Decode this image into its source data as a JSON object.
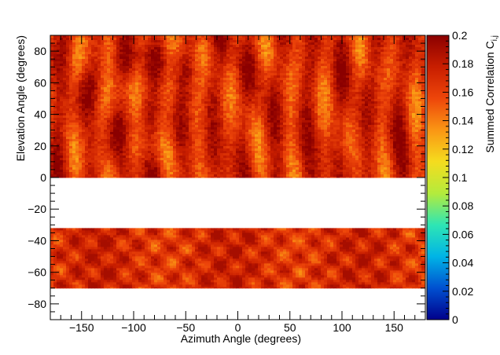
{
  "chart_data": {
    "type": "heatmap",
    "xlabel": "Azimuth Angle (degrees)",
    "ylabel": "Elevation Angle (degrees)",
    "xlim": [
      -180,
      180
    ],
    "ylim": [
      -90,
      90
    ],
    "x_ticks": [
      -150,
      -100,
      -50,
      0,
      50,
      100,
      150
    ],
    "y_ticks": [
      -80,
      -60,
      -40,
      -20,
      0,
      20,
      40,
      60,
      80
    ],
    "colorbar": {
      "label_main": "Summed Correlation C",
      "label_sub": "i,j",
      "range": [
        0,
        0.2
      ],
      "ticks": [
        0,
        0.02,
        0.04,
        0.06,
        0.08,
        0.1,
        0.12,
        0.14,
        0.16,
        0.18,
        0.2
      ]
    },
    "colormap": [
      "#00008b",
      "#0050d0",
      "#00b4e6",
      "#2ee6b4",
      "#b4eb3c",
      "#f5dc1e",
      "#fa9614",
      "#ee460a",
      "#c81e00",
      "#8b0000"
    ],
    "bands": [
      {
        "elevation_range": [
          0,
          90
        ],
        "typical_value": 0.16,
        "min_value": 0.1,
        "max_value": 0.2,
        "pattern": "vertical streaks with arcs"
      },
      {
        "elevation_range": [
          -70,
          -32
        ],
        "typical_value": 0.16,
        "min_value": 0.11,
        "max_value": 0.19,
        "pattern": "crossing diagonal fringes"
      }
    ],
    "blank_regions": [
      {
        "elevation_range": [
          -32,
          0
        ]
      },
      {
        "elevation_range": [
          -90,
          -70
        ]
      }
    ],
    "grid": false
  }
}
